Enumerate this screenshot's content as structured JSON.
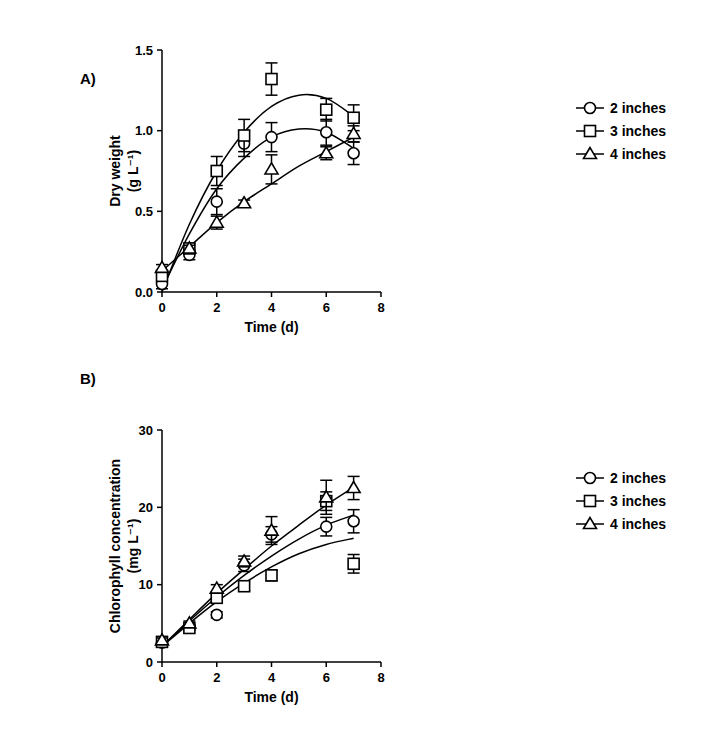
{
  "chart_data": [
    {
      "type": "scatter",
      "panel_label": "A)",
      "xlabel": "Time (d)",
      "ylabel": [
        "Dry weight",
        "(g L⁻¹)"
      ],
      "x": [
        0,
        1,
        2,
        3,
        4,
        6,
        7
      ],
      "xlim": [
        0,
        8
      ],
      "xticks": [
        0,
        2,
        4,
        6,
        8
      ],
      "ylim": [
        0,
        1.5
      ],
      "yticks": [
        {
          "value": 0,
          "label": "0.0"
        },
        {
          "value": 0.5,
          "label": "0.5"
        },
        {
          "value": 1,
          "label": "1.0"
        },
        {
          "value": 1.5,
          "label": "1.5"
        }
      ],
      "legend": "right",
      "series": [
        {
          "name": "2 inches",
          "color": "#000000",
          "marker": "circle",
          "values": [
            0.05,
            0.23,
            0.56,
            0.92,
            0.96,
            0.99,
            0.86
          ],
          "errors": [
            0.03,
            0.03,
            0.08,
            0.08,
            0.09,
            0.08,
            0.07
          ]
        },
        {
          "name": "3 inches",
          "color": "#000000",
          "marker": "square",
          "values": [
            0.1,
            0.27,
            0.75,
            0.97,
            1.32,
            1.13,
            1.08
          ],
          "errors": [
            0.03,
            0.03,
            0.09,
            0.1,
            0.1,
            0.07,
            0.08
          ]
        },
        {
          "name": "4 inches",
          "color": "#000000",
          "marker": "triangle",
          "values": [
            0.15,
            0.27,
            0.43,
            0.55,
            0.76,
            0.86,
            0.98
          ],
          "errors": [
            0.02,
            0.02,
            0.04,
            0.02,
            0.09,
            0.04,
            0.05
          ]
        },
        {
          "type": "line",
          "color": "#000000",
          "line_style": "solid",
          "x": [
            0,
            1,
            2,
            3,
            4,
            5,
            6,
            7
          ],
          "values": [
            0.02,
            0.36,
            0.64,
            0.83,
            0.96,
            1.01,
            0.99,
            0.89
          ]
        },
        {
          "type": "line",
          "color": "#000000",
          "line_style": "solid",
          "x": [
            0,
            1,
            2,
            3,
            4,
            5,
            6,
            7
          ],
          "values": [
            0.0,
            0.42,
            0.75,
            0.99,
            1.15,
            1.22,
            1.2,
            1.09
          ]
        },
        {
          "type": "line",
          "color": "#000000",
          "line_style": "solid",
          "x": [
            0,
            1,
            2,
            3,
            4,
            5,
            6,
            7
          ],
          "values": [
            0.13,
            0.28,
            0.43,
            0.56,
            0.67,
            0.78,
            0.87,
            0.96
          ]
        }
      ]
    },
    {
      "type": "scatter",
      "panel_label": "B)",
      "xlabel": "Time (d)",
      "ylabel": [
        "Chlorophyll concentration",
        "(mg L⁻¹)"
      ],
      "x": [
        0,
        1,
        2,
        3,
        4,
        6,
        7
      ],
      "xlim": [
        0,
        8
      ],
      "xticks": [
        0,
        2,
        4,
        6,
        8
      ],
      "ylim": [
        0,
        30
      ],
      "yticks": [
        0,
        10,
        20,
        30
      ],
      "legend": "right",
      "series": [
        {
          "name": "2 inches",
          "color": "#000000",
          "marker": "circle",
          "values": [
            2.5,
            4.5,
            6.1,
            12.5,
            16.5,
            17.5,
            18.2
          ],
          "errors": [
            0.3,
            0.3,
            0.4,
            0.8,
            1.0,
            1.2,
            1.5
          ]
        },
        {
          "name": "3 inches",
          "color": "#000000",
          "marker": "square",
          "values": [
            2.6,
            4.4,
            8.3,
            9.8,
            11.2,
            20.8,
            12.7
          ],
          "errors": [
            0.3,
            0.3,
            0.5,
            0.6,
            0.7,
            1.2,
            1.2
          ]
        },
        {
          "name": "4 inches",
          "color": "#000000",
          "marker": "triangle",
          "values": [
            2.8,
            5.0,
            9.5,
            13.0,
            17.0,
            21.3,
            22.5
          ],
          "errors": [
            0.3,
            0.3,
            0.5,
            0.7,
            1.8,
            2.2,
            1.5
          ]
        },
        {
          "type": "line",
          "color": "#000000",
          "line_style": "solid",
          "x": [
            0,
            1,
            2,
            3,
            4,
            5,
            6,
            7
          ],
          "values": [
            2.0,
            5.3,
            8.4,
            11.2,
            13.7,
            15.9,
            17.7,
            19.0
          ]
        },
        {
          "type": "line",
          "color": "#000000",
          "line_style": "solid",
          "x": [
            0,
            1,
            2,
            3,
            4,
            5,
            6,
            7
          ],
          "values": [
            2.0,
            5.0,
            7.8,
            10.2,
            12.3,
            14.0,
            15.2,
            16.0
          ]
        },
        {
          "type": "line",
          "color": "#000000",
          "line_style": "solid",
          "x": [
            0,
            1,
            2,
            3,
            4,
            5,
            6,
            7
          ],
          "values": [
            2.0,
            5.5,
            8.9,
            12.0,
            15.0,
            17.7,
            20.3,
            22.6
          ]
        }
      ]
    }
  ]
}
